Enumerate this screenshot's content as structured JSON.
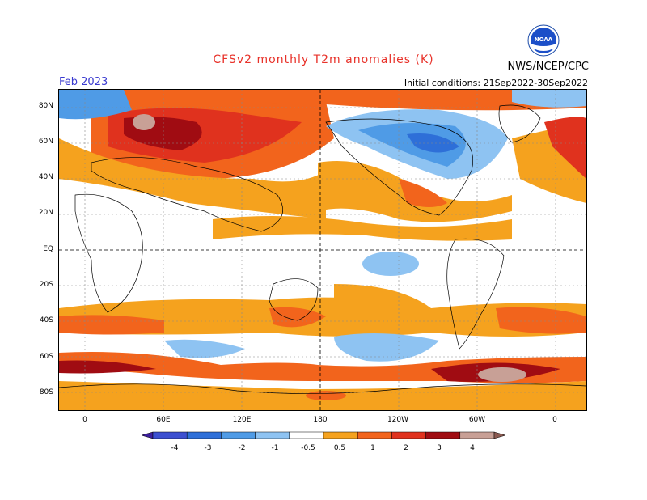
{
  "title": "CFSv2 monthly T2m anomalies (K)",
  "organization": "NWS/NCEP/CPC",
  "valid_month": "Feb 2023",
  "initial_conditions": "Initial conditions: 21Sep2022-30Sep2022",
  "logo_text": "NOAA",
  "lat_labels": [
    "80N",
    "60N",
    "40N",
    "20N",
    "EQ",
    "20S",
    "40S",
    "60S",
    "80S"
  ],
  "lon_labels": [
    "0",
    "60E",
    "120E",
    "180",
    "120W",
    "60W",
    "0"
  ],
  "colorbar": {
    "labels": [
      "-4",
      "-3",
      "-2",
      "-1",
      "-0.5",
      "0.5",
      "1",
      "2",
      "3",
      "4"
    ],
    "colors": [
      "#3c1e9c",
      "#3c4fd0",
      "#2e6fd8",
      "#4f9be6",
      "#8ec3f2",
      "#ffffff",
      "#f5a21e",
      "#f2641c",
      "#e0321e",
      "#a00c12",
      "#c8a096",
      "#8a5a50"
    ]
  }
}
